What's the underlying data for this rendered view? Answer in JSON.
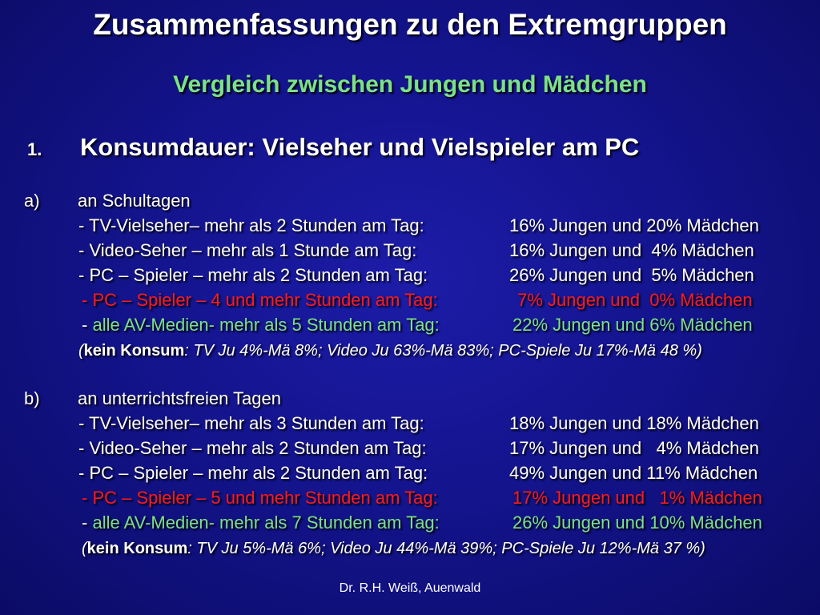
{
  "title": "Zusammenfassungen zu den Extremgruppen",
  "subtitle": "Vergleich zwischen Jungen und Mädchen",
  "heading": {
    "number": "1.",
    "text": "Konsumdauer: Vielseher und Vielspieler am PC"
  },
  "sections": [
    {
      "letter": "a)",
      "label": "an Schultagen",
      "rows": [
        {
          "dash": "- ",
          "label": "TV-Vielseher– mehr als 2 Stunden am Tag:",
          "value": "16% Jungen und 20% Mädchen"
        },
        {
          "dash": "- ",
          "label": "Video-Seher – mehr als 1 Stunde am Tag:",
          "value": "16% Jungen und  4% Mädchen"
        },
        {
          "dash": "- ",
          "label": "PC – Spieler – mehr als 2 Stunden am Tag:",
          "value": "26% Jungen und  5% Mädchen"
        },
        {
          "dash": "- ",
          "label": "PC – Spieler – 4 und mehr Stunden am Tag:",
          "value": " 7% Jungen und  0% Mädchen"
        },
        {
          "dash": "- ",
          "label": "alle AV-Medien- mehr als 5 Stunden am Tag:",
          "value": "22% Jungen und 6% Mädchen"
        }
      ],
      "kein": {
        "open": "(",
        "bold": "kein Konsum",
        "rest": ": TV Ju 4%-Mä 8%; Video Ju 63%-Mä 83%; PC-Spiele Ju 17%-Mä 48 %)"
      }
    },
    {
      "letter": "b)",
      "label": "an unterrichtsfreien Tagen",
      "rows": [
        {
          "dash": "- ",
          "label": "TV-Vielseher– mehr als 3 Stunden am Tag:",
          "value": "18% Jungen und 18% Mädchen"
        },
        {
          "dash": "- ",
          "label": "Video-Seher – mehr als 2 Stunden am Tag:",
          "value": "17% Jungen und   4% Mädchen"
        },
        {
          "dash": "- ",
          "label": "PC – Spieler – mehr als 2 Stunden am Tag:",
          "value": "49% Jungen und 11% Mädchen"
        },
        {
          "dash": "- ",
          "label": "PC – Spieler – 5 und mehr Stunden am Tag:",
          "value": "17% Jungen und   1% Mädchen"
        },
        {
          "dash": "- ",
          "label": "alle AV-Medien- mehr als 7 Stunden am Tag:",
          "value": "26% Jungen und 10% Mädchen"
        }
      ],
      "kein": {
        "open": "(",
        "bold": "kein Konsum",
        "rest": ": TV Ju 5%-Mä 6%; Video Ju 44%-Mä 39%; PC-Spiele Ju 12%-Mä 37 %)"
      }
    }
  ],
  "footer": "Dr. R.H. Weiß, Auenwald",
  "colors": {
    "background": "#14148e",
    "accent_green": "#7de08a",
    "highlight_red": "#ff1a1a",
    "text": "#ffffff"
  }
}
